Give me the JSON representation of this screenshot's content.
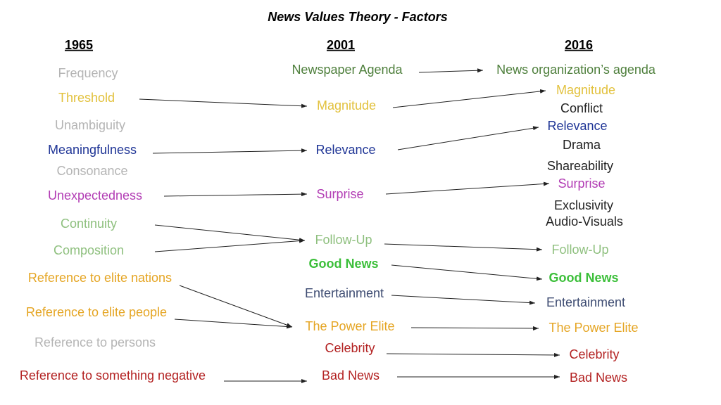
{
  "title": "News Values Theory - Factors",
  "columns": [
    {
      "header": "1965",
      "items": [
        "Frequency",
        "Threshold",
        "Unambiguity",
        "Meaningfulness",
        "Consonance",
        "Unexpectedness",
        "Continuity",
        "Composition",
        "Reference to elite nations",
        "Reference to elite people",
        "Reference to persons",
        "Reference to something negative"
      ]
    },
    {
      "header": "2001",
      "items": [
        "Newspaper Agenda",
        "Magnitude",
        "Relevance",
        "Surprise",
        "Follow-Up",
        "Good News",
        "Entertainment",
        "The Power Elite",
        "Celebrity",
        "Bad News"
      ]
    },
    {
      "header": "2016",
      "items": [
        "News organization’s agenda",
        "Magnitude",
        "Conflict",
        "Relevance",
        "Drama",
        "Shareability",
        "Surprise",
        "Exclusivity",
        "Audio-Visuals",
        "Follow-Up",
        "Good News",
        "Entertainment",
        "The Power Elite",
        "Celebrity",
        "Bad News"
      ]
    }
  ]
}
